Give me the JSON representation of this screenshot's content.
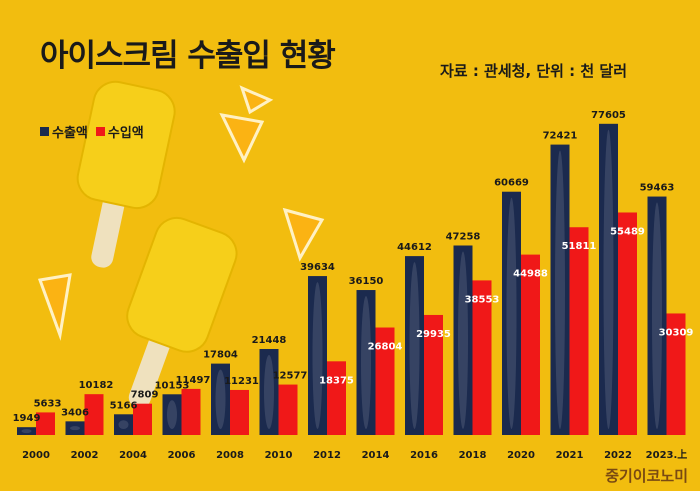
{
  "header": {
    "title": "아이스크림 수출입 현황",
    "source": "자료 : 관세청, 단위 : 천 달러"
  },
  "watermark": "중기이코노미",
  "colors": {
    "background": "#f2bd0f",
    "export": "#1b2a4e",
    "import": "#f01818"
  },
  "chart_data": {
    "type": "bar",
    "title": "아이스크림 수출입 현황",
    "unit": "천 달러",
    "categories": [
      "2000",
      "2002",
      "2004",
      "2006",
      "2008",
      "2010",
      "2012",
      "2014",
      "2016",
      "2018",
      "2020",
      "2021",
      "2022",
      "2023.上"
    ],
    "series": [
      {
        "name": "수출액",
        "values": [
          1949,
          3406,
          5166,
          10153,
          17804,
          21448,
          39634,
          36150,
          44612,
          47258,
          60669,
          72421,
          77605,
          59463
        ]
      },
      {
        "name": "수입액",
        "values": [
          5633,
          10182,
          7809,
          11497,
          11231,
          12577,
          18375,
          26804,
          29935,
          38553,
          44988,
          51811,
          55489,
          30309
        ]
      }
    ],
    "legend": [
      "수출액",
      "수입액"
    ],
    "legend_position": "top-left",
    "ylim": [
      0,
      80000
    ],
    "grid": false
  }
}
